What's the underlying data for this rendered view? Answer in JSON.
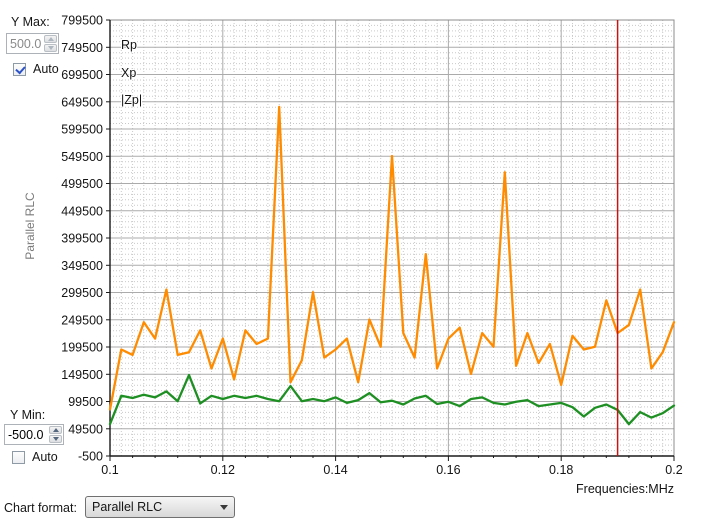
{
  "controls": {
    "y_max_label": "Y Max:",
    "y_max_value": "500.0",
    "y_max_auto_label": "Auto",
    "y_max_auto_checked": true,
    "y_min_label": "Y Min:",
    "y_min_value": "-500.0",
    "y_min_auto_label": "Auto",
    "y_min_auto_checked": false,
    "axis_title_vertical": "Parallel RLC",
    "chart_format_label": "Chart format:",
    "chart_format_value": "Parallel RLC"
  },
  "chart_data": {
    "type": "line",
    "title": "",
    "xlabel": "Frequencies:MHz",
    "ylabel": "Parallel RLC",
    "xlim": [
      0.1,
      0.2
    ],
    "ylim": [
      -500,
      799500
    ],
    "grid": {
      "major": true,
      "minor": true,
      "minor_y_step": 10000,
      "minor_x_step": 0.002
    },
    "x_tick_labels": [
      "0.1",
      "0.12",
      "0.14",
      "0.16",
      "0.18",
      "0.2"
    ],
    "x_tick_values": [
      0.1,
      0.12,
      0.14,
      0.16,
      0.18,
      0.2
    ],
    "y_tick_labels": [
      "799500",
      "749500",
      "699500",
      "649500",
      "599500",
      "549500",
      "499500",
      "449500",
      "399500",
      "349500",
      "299500",
      "249500",
      "199500",
      "149500",
      "99500",
      "49500",
      "-500"
    ],
    "legend": [
      {
        "name": "Rp",
        "color": "#FF8C00"
      },
      {
        "name": "Xp",
        "color": "#2B3FD4"
      },
      {
        "name": "|Zp|",
        "color": "#1E9023"
      }
    ],
    "legend_position": "top-left-inside",
    "cursor": {
      "x_mhz": 0.19,
      "color": "#CC1111"
    },
    "x": [
      0.1,
      0.102,
      0.104,
      0.106,
      0.108,
      0.11,
      0.112,
      0.114,
      0.116,
      0.118,
      0.12,
      0.122,
      0.124,
      0.126,
      0.128,
      0.13,
      0.132,
      0.134,
      0.136,
      0.138,
      0.14,
      0.142,
      0.144,
      0.146,
      0.148,
      0.15,
      0.152,
      0.154,
      0.156,
      0.158,
      0.16,
      0.162,
      0.164,
      0.166,
      0.168,
      0.17,
      0.172,
      0.174,
      0.176,
      0.178,
      0.18,
      0.182,
      0.184,
      0.186,
      0.188,
      0.19,
      0.192,
      0.194,
      0.196,
      0.198,
      0.2
    ],
    "series": [
      {
        "name": "Rp",
        "color": "#FF8C00",
        "values": [
          85000,
          195000,
          185000,
          245000,
          215000,
          305000,
          185000,
          190000,
          230000,
          160000,
          215000,
          140000,
          230000,
          205000,
          215000,
          640000,
          135000,
          175000,
          300000,
          180000,
          195000,
          215000,
          135000,
          250000,
          200000,
          550000,
          225000,
          180000,
          370000,
          160000,
          215000,
          235000,
          150000,
          225000,
          200000,
          520000,
          165000,
          225000,
          170000,
          205000,
          130000,
          220000,
          195000,
          200000,
          285000,
          225000,
          240000,
          305000,
          160000,
          190000,
          245000
        ]
      },
      {
        "name": "Xp",
        "color": "#2B3FD4",
        "visible": false,
        "values": []
      },
      {
        "name": "|Zp|",
        "color": "#1E9023",
        "values": [
          58000,
          110000,
          106000,
          112000,
          107000,
          118000,
          100000,
          148000,
          96000,
          110000,
          104000,
          110000,
          106000,
          110000,
          104000,
          100000,
          128000,
          100000,
          104000,
          100000,
          107000,
          97000,
          102000,
          115000,
          98000,
          101000,
          94000,
          105000,
          110000,
          95000,
          99000,
          91000,
          104000,
          107000,
          97000,
          94000,
          99000,
          102000,
          91000,
          94000,
          97000,
          89000,
          72000,
          88000,
          94000,
          84000,
          58000,
          80000,
          70000,
          78000,
          92000
        ]
      }
    ],
    "colors": {
      "grid_major": "#ABABAB",
      "grid_minor": "#C9C9C9",
      "border": "#8C8C8C",
      "axis": "#1A1A1A"
    }
  }
}
